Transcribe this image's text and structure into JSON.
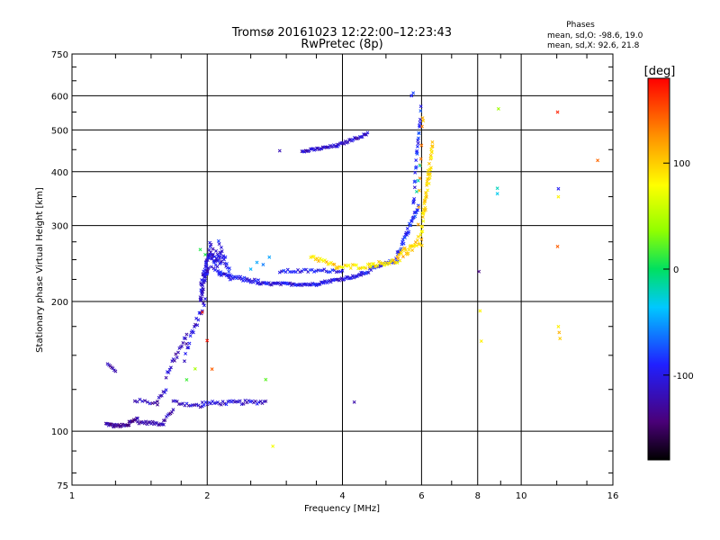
{
  "chart_data": {
    "type": "scatter",
    "title": "Tromsø 20161023 12:22:00–12:23:43",
    "subtitle": "RwPretec (8p)",
    "xlabel": "Frequency [MHz]",
    "ylabel": "Stationary phase Virtual Height [km]",
    "x_scale": "log2",
    "y_scale": "log",
    "xlim": [
      1,
      16
    ],
    "ylim": [
      75,
      750
    ],
    "x_tick_labels": [
      "1",
      "2",
      "4",
      "6",
      "8",
      "10",
      "16"
    ],
    "x_tick_values": [
      1,
      2,
      4,
      6,
      8,
      10,
      16
    ],
    "y_tick_labels": [
      "75",
      "100",
      "200",
      "300",
      "400",
      "500",
      "600",
      "750"
    ],
    "y_tick_values": [
      75,
      100,
      200,
      300,
      400,
      500,
      600,
      750
    ],
    "x_gridlines": [
      2,
      4,
      6,
      8,
      10
    ],
    "y_gridlines": [
      100,
      200,
      300,
      400,
      500,
      600
    ],
    "grid": true,
    "stats": {
      "title": "Phases",
      "line1": "mean, sd,O: -98.6, 19.0",
      "line2": "mean, sd,X:  92.6, 21.8"
    },
    "colorbar": {
      "label": "[deg]",
      "range": [
        -180,
        180
      ],
      "tick_labels": [
        "100",
        "0",
        "-100"
      ],
      "tick_values": [
        100,
        0,
        -100
      ],
      "colormap": "rainbow (black-purple-blue-cyan-green-yellow-red)"
    },
    "series": [
      {
        "segments": [
          {
            "x0": 1.19,
            "x1": 1.24,
            "h0": 104,
            "h1": 103,
            "n": 10,
            "jit": 0.8,
            "phase": -130
          },
          {
            "x0": 1.24,
            "x1": 1.34,
            "h0": 103,
            "h1": 103,
            "n": 16,
            "jit": 0.8,
            "phase": -130
          },
          {
            "x0": 1.34,
            "x1": 1.4,
            "h0": 105,
            "h1": 107,
            "n": 10,
            "jit": 0.8,
            "phase": -128
          },
          {
            "x0": 1.4,
            "x1": 1.6,
            "h0": 105,
            "h1": 104,
            "n": 20,
            "jit": 0.8,
            "phase": -128
          },
          {
            "x0": 1.6,
            "x1": 1.68,
            "h0": 106,
            "h1": 112,
            "n": 8,
            "jit": 0.8,
            "phase": -125
          },
          {
            "x0": 1.2,
            "x1": 1.25,
            "h0": 143,
            "h1": 138,
            "n": 7,
            "jit": 0.8,
            "phase": -120
          },
          {
            "x0": 1.38,
            "x1": 1.55,
            "h0": 118,
            "h1": 116,
            "n": 10,
            "jit": 1.0,
            "phase": -118
          },
          {
            "x0": 1.55,
            "x1": 1.62,
            "h0": 118,
            "h1": 125,
            "n": 7,
            "jit": 1.0,
            "phase": -118
          },
          {
            "x0": 1.62,
            "x1": 1.8,
            "h0": 135,
            "h1": 165,
            "n": 18,
            "jit": 3.5,
            "phase": -115
          },
          {
            "x0": 1.78,
            "x1": 1.98,
            "h0": 150,
            "h1": 200,
            "n": 22,
            "jit": 5.0,
            "phase": -112
          },
          {
            "x0": 1.68,
            "x1": 1.95,
            "h0": 117,
            "h1": 114,
            "n": 16,
            "jit": 1.2,
            "phase": -112
          },
          {
            "x0": 1.95,
            "x1": 2.7,
            "h0": 116,
            "h1": 117,
            "n": 38,
            "jit": 1.2,
            "phase": -108
          },
          {
            "x0": 1.93,
            "x1": 2.02,
            "h0": 210,
            "h1": 250,
            "n": 55,
            "jit": 12.0,
            "phase": -105
          },
          {
            "x0": 2.02,
            "x1": 2.15,
            "h0": 260,
            "h1": 240,
            "n": 40,
            "jit": 16.0,
            "phase": -102
          },
          {
            "x0": 2.12,
            "x1": 2.25,
            "h0": 270,
            "h1": 230,
            "n": 18,
            "jit": 8.0,
            "phase": -100
          },
          {
            "x0": 2.15,
            "x1": 2.6,
            "h0": 230,
            "h1": 222,
            "n": 30,
            "jit": 2.5,
            "phase": -100
          },
          {
            "x0": 2.6,
            "x1": 3.5,
            "h0": 220,
            "h1": 219,
            "n": 45,
            "jit": 1.5,
            "phase": -100
          },
          {
            "x0": 3.5,
            "x1": 4.4,
            "h0": 220,
            "h1": 230,
            "n": 38,
            "jit": 1.5,
            "phase": -100
          },
          {
            "x0": 2.9,
            "x1": 4.0,
            "h0": 235,
            "h1": 236,
            "n": 32,
            "jit": 2.0,
            "phase": -95
          },
          {
            "x0": 4.4,
            "x1": 5.3,
            "h0": 232,
            "h1": 250,
            "n": 30,
            "jit": 2.5,
            "phase": -95
          },
          {
            "x0": 5.3,
            "x1": 5.9,
            "h0": 255,
            "h1": 330,
            "n": 34,
            "jit": 6.0,
            "phase": -90
          },
          {
            "x0": 5.75,
            "x1": 5.98,
            "h0": 330,
            "h1": 560,
            "n": 26,
            "jit": 15.0,
            "phase": -90
          },
          {
            "x0": 3.25,
            "x1": 3.9,
            "h0": 445,
            "h1": 460,
            "n": 30,
            "jit": 3.0,
            "phase": -110
          },
          {
            "x0": 3.9,
            "x1": 4.55,
            "h0": 460,
            "h1": 490,
            "n": 24,
            "jit": 3.0,
            "phase": -110
          },
          {
            "x0": 2.9,
            "x1": 2.9,
            "h0": 447,
            "h1": 447,
            "n": 1,
            "jit": 0.5,
            "phase": -110
          },
          {
            "x0": 4.25,
            "x1": 4.25,
            "h0": 117,
            "h1": 117,
            "n": 1,
            "jit": 0.5,
            "phase": -105
          },
          {
            "x0": 5.7,
            "x1": 5.75,
            "h0": 600,
            "h1": 610,
            "n": 2,
            "jit": 2.0,
            "phase": -95
          }
        ]
      },
      {
        "segments": [
          {
            "x0": 3.4,
            "x1": 3.9,
            "h0": 255,
            "h1": 240,
            "n": 18,
            "jit": 3.0,
            "phase": 95
          },
          {
            "x0": 3.9,
            "x1": 4.6,
            "h0": 240,
            "h1": 242,
            "n": 18,
            "jit": 3.0,
            "phase": 90
          },
          {
            "x0": 4.6,
            "x1": 5.3,
            "h0": 243,
            "h1": 248,
            "n": 22,
            "jit": 3.0,
            "phase": 92
          },
          {
            "x0": 5.3,
            "x1": 6.0,
            "h0": 250,
            "h1": 280,
            "n": 30,
            "jit": 7.0,
            "phase": 100
          },
          {
            "x0": 6.0,
            "x1": 6.35,
            "h0": 280,
            "h1": 450,
            "n": 50,
            "jit": 22.0,
            "phase": 95
          },
          {
            "x0": 5.9,
            "x1": 6.05,
            "h0": 300,
            "h1": 550,
            "n": 10,
            "jit": 25.0,
            "phase": 120
          },
          {
            "x0": 8.9,
            "x1": 8.9,
            "h0": 560,
            "h1": 560,
            "n": 1,
            "jit": 0.5,
            "phase": 50
          },
          {
            "x0": 12.05,
            "x1": 12.05,
            "h0": 550,
            "h1": 550,
            "n": 1,
            "jit": 0.5,
            "phase": 160
          },
          {
            "x0": 14.8,
            "x1": 14.8,
            "h0": 425,
            "h1": 425,
            "n": 1,
            "jit": 0.5,
            "phase": 155
          },
          {
            "x0": 12.05,
            "x1": 12.05,
            "h0": 268,
            "h1": 268,
            "n": 1,
            "jit": 0.5,
            "phase": 140
          },
          {
            "x0": 12.1,
            "x1": 12.2,
            "h0": 175,
            "h1": 165,
            "n": 3,
            "jit": 2.0,
            "phase": 95
          },
          {
            "x0": 8.1,
            "x1": 8.15,
            "h0": 190,
            "h1": 160,
            "n": 2,
            "jit": 3.0,
            "phase": 90
          },
          {
            "x0": 2.8,
            "x1": 2.8,
            "h0": 92,
            "h1": 92,
            "n": 1,
            "jit": 0.3,
            "phase": 95
          }
        ]
      },
      {
        "segments": [
          {
            "x0": 8.85,
            "x1": 8.85,
            "h0": 365,
            "h1": 355,
            "n": 2,
            "jit": 2.0,
            "phase": -15
          },
          {
            "x0": 12.1,
            "x1": 12.1,
            "h0": 365,
            "h1": 365,
            "n": 1,
            "jit": 0.5,
            "phase": -90
          },
          {
            "x0": 12.1,
            "x1": 12.1,
            "h0": 350,
            "h1": 350,
            "n": 1,
            "jit": 0.5,
            "phase": 95
          },
          {
            "x0": 8.05,
            "x1": 8.05,
            "h0": 235,
            "h1": 235,
            "n": 1,
            "jit": 0.5,
            "phase": -150
          },
          {
            "x0": 2.7,
            "x1": 2.7,
            "h0": 132,
            "h1": 132,
            "n": 1,
            "jit": 0.5,
            "phase": 20
          },
          {
            "x0": 1.93,
            "x1": 1.98,
            "h0": 262,
            "h1": 255,
            "n": 2,
            "jit": 2.0,
            "phase": 15
          },
          {
            "x0": 1.95,
            "x1": 2.05,
            "h0": 190,
            "h1": 140,
            "n": 3,
            "jit": 5.0,
            "phase": 160
          },
          {
            "x0": 1.8,
            "x1": 1.88,
            "h0": 133,
            "h1": 140,
            "n": 2,
            "jit": 2.0,
            "phase": 30
          },
          {
            "x0": 2.5,
            "x1": 2.75,
            "h0": 240,
            "h1": 250,
            "n": 4,
            "jit": 4.0,
            "phase": -40
          },
          {
            "x0": 5.85,
            "x1": 5.95,
            "h0": 350,
            "h1": 420,
            "n": 3,
            "jit": 10.0,
            "phase": -30
          }
        ]
      }
    ]
  }
}
